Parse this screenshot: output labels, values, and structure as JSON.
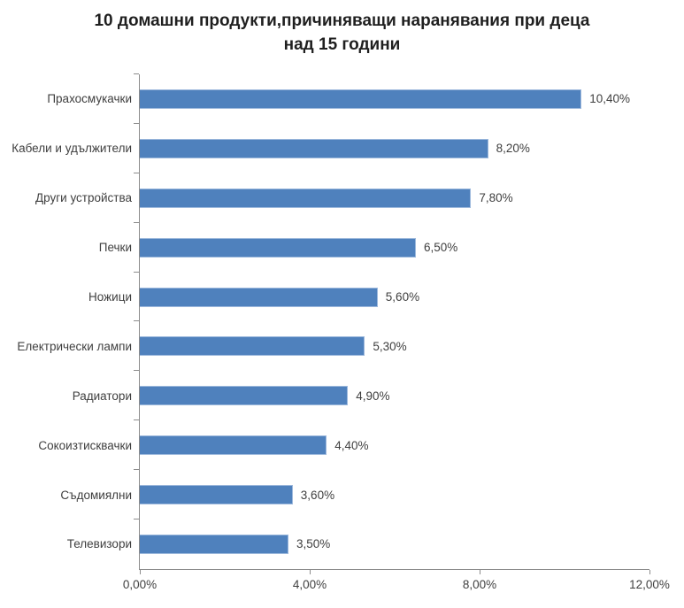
{
  "chart_data": {
    "type": "bar",
    "orientation": "horizontal",
    "title": "10 домашни продукти,причиняващи наранявания при деца над 15 години",
    "title_line1": "10 домашни продукти,причиняващи наранявания при деца",
    "title_line2": "над 15 години",
    "categories": [
      "Прахосмукачки",
      "Кабели и удължители",
      "Други устройства",
      "Печки",
      "Ножици",
      "Електрически лампи",
      "Радиатори",
      "Сокоизтисквачки",
      "Съдомиялни",
      "Телевизори"
    ],
    "values": [
      10.4,
      8.2,
      7.8,
      6.5,
      5.6,
      5.3,
      4.9,
      4.4,
      3.6,
      3.5
    ],
    "value_labels": [
      "10,40%",
      "8,20%",
      "7,80%",
      "6,50%",
      "5,60%",
      "5,30%",
      "4,90%",
      "4,40%",
      "3,60%",
      "3,50%"
    ],
    "xlabel": "",
    "ylabel": "",
    "xlim": [
      0,
      12
    ],
    "x_tick_values": [
      0,
      4,
      8,
      12
    ],
    "x_tick_labels": [
      "0,00%",
      "4,00%",
      "8,00%",
      "12,00%"
    ],
    "grid": false,
    "legend": false,
    "colors": {
      "bar": "#4F81BD",
      "bar_border": "#9CB8DC",
      "axis": "#8C8C8C",
      "label": "#3F3F3F",
      "title": "#1F1F1F",
      "background": "#FFFFFF"
    }
  }
}
